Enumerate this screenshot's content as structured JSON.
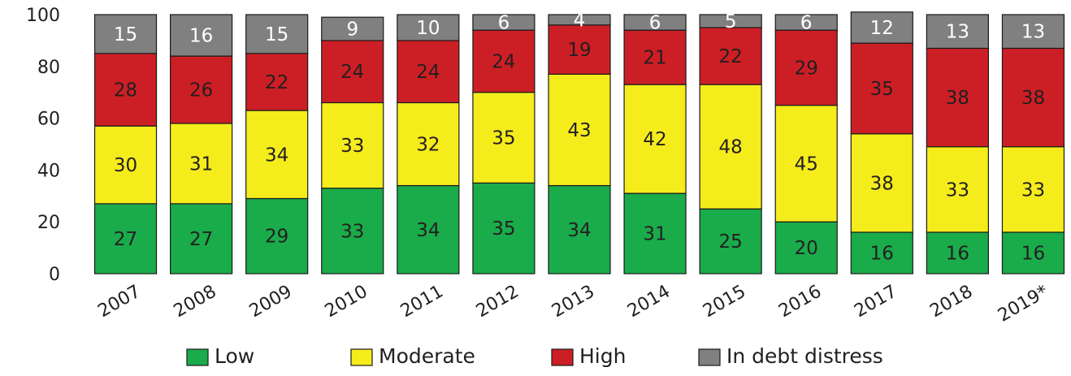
{
  "chart_data": {
    "type": "bar",
    "stacked": true,
    "categories": [
      "2007",
      "2008",
      "2009",
      "2010",
      "2011",
      "2012",
      "2013",
      "2014",
      "2015",
      "2016",
      "2017",
      "2018",
      "2019*"
    ],
    "series": [
      {
        "name": "Low",
        "color": "#1aab4b",
        "values": [
          27,
          27,
          29,
          33,
          34,
          35,
          34,
          31,
          25,
          20,
          16,
          16,
          16
        ]
      },
      {
        "name": "Moderate",
        "color": "#f5ec1c",
        "values": [
          30,
          31,
          34,
          33,
          32,
          35,
          43,
          42,
          48,
          45,
          38,
          33,
          33
        ]
      },
      {
        "name": "High",
        "color": "#cc1f25",
        "values": [
          28,
          26,
          22,
          24,
          24,
          24,
          19,
          21,
          22,
          29,
          35,
          38,
          38
        ]
      },
      {
        "name": "In debt distress",
        "color": "#808080",
        "values": [
          15,
          16,
          15,
          9,
          10,
          6,
          4,
          6,
          5,
          6,
          12,
          13,
          13
        ]
      }
    ],
    "ylim": [
      0,
      100
    ],
    "yticks": [
      0,
      20,
      40,
      60,
      80,
      100
    ],
    "legend_position": "bottom",
    "grid": false
  }
}
